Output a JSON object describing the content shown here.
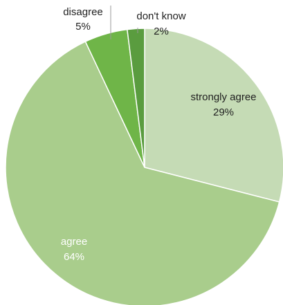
{
  "chart_data": {
    "type": "pie",
    "start_angle_deg": 0,
    "direction": "clockwise",
    "slices": [
      {
        "label": "strongly agree",
        "value": 29,
        "value_label": "29%",
        "color": "#c5dbb5",
        "label_color": "#1f1f1f"
      },
      {
        "label": "agree",
        "value": 64,
        "value_label": "64%",
        "color": "#a9cd8c",
        "label_color": "#ffffff"
      },
      {
        "label": "disagree",
        "value": 5,
        "value_label": "5%",
        "color": "#6fb548",
        "label_color": "#1f1f1f"
      },
      {
        "label": "don't know",
        "value": 2,
        "value_label": "2%",
        "color": "#5a9c3f",
        "label_color": "#1f1f1f"
      }
    ],
    "slice_border_color": "#ffffff",
    "leader_line_color": "#9a9a9a"
  }
}
